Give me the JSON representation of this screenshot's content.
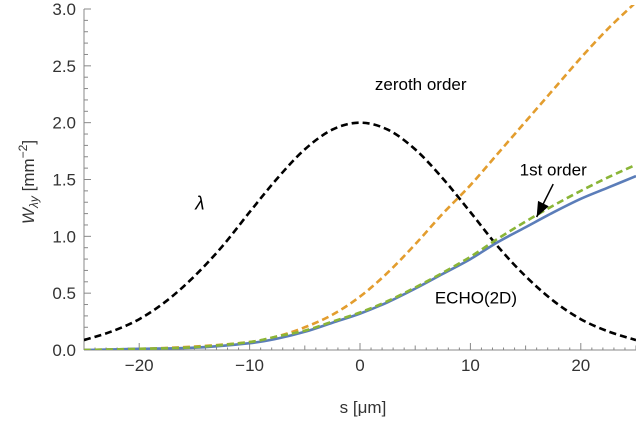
{
  "chart_data": {
    "type": "line",
    "title": "",
    "xlabel": "s [μm]",
    "ylabel": "W",
    "ylabel_sub": "λy",
    "ylabel_unit_pre": " [mm",
    "ylabel_unit_sup": "−2",
    "ylabel_unit_post": "]",
    "xlim": [
      -25,
      25
    ],
    "ylim": [
      0,
      3
    ],
    "x_ticks": [
      -20,
      -10,
      0,
      10,
      20
    ],
    "x_tick_labels": [
      "−20",
      "−10",
      "0",
      "10",
      "20"
    ],
    "y_ticks": [
      0,
      0.5,
      1,
      1.5,
      2,
      2.5,
      3
    ],
    "y_tick_labels": [
      "0.0",
      "0.5",
      "1.0",
      "1.5",
      "2.0",
      "2.5",
      "3.0"
    ],
    "grid": false,
    "series": [
      {
        "id": "lambda",
        "color": "#000000",
        "dash": true,
        "x": [
          -25,
          -22.5,
          -20,
          -17.5,
          -15,
          -12.5,
          -10,
          -7.5,
          -5,
          -2.5,
          0,
          2.5,
          5,
          7.5,
          10,
          12.5,
          15,
          17.5,
          20,
          22.5,
          25
        ],
        "y": [
          0.087,
          0.163,
          0.271,
          0.434,
          0.649,
          0.909,
          1.213,
          1.509,
          1.765,
          1.939,
          2.0,
          1.939,
          1.765,
          1.509,
          1.213,
          0.909,
          0.649,
          0.434,
          0.271,
          0.163,
          0.087
        ]
      },
      {
        "id": "zeroth-order",
        "color": "#E39D2E",
        "dash": true,
        "x": [
          -25,
          -20,
          -15,
          -10,
          -7.5,
          -5,
          -2.5,
          0,
          2.5,
          5,
          7.5,
          10,
          12.5,
          15,
          17.5,
          20,
          22.5,
          25
        ],
        "y": [
          0.0,
          0.01,
          0.03,
          0.07,
          0.12,
          0.2,
          0.31,
          0.47,
          0.68,
          0.93,
          1.2,
          1.45,
          1.73,
          2.01,
          2.29,
          2.57,
          2.83,
          3.06
        ]
      },
      {
        "id": "first-order",
        "color": "#8AB537",
        "dash": true,
        "x": [
          -25,
          -20,
          -15,
          -10,
          -7.5,
          -5,
          -2.5,
          0,
          2.5,
          5,
          7.5,
          10,
          12.5,
          15,
          17.5,
          20,
          22.5,
          25
        ],
        "y": [
          0.0,
          0.01,
          0.025,
          0.07,
          0.12,
          0.17,
          0.25,
          0.33,
          0.43,
          0.55,
          0.68,
          0.82,
          0.98,
          1.13,
          1.27,
          1.4,
          1.52,
          1.63
        ]
      },
      {
        "id": "echo-2d",
        "color": "#5B7DB9",
        "dash": false,
        "x": [
          -25,
          -20,
          -15,
          -10,
          -7.5,
          -5,
          -2.5,
          0,
          2.5,
          5,
          7.5,
          10,
          12.5,
          15,
          17.5,
          20,
          22.5,
          25
        ],
        "y": [
          0.0,
          0.01,
          0.02,
          0.06,
          0.1,
          0.16,
          0.24,
          0.32,
          0.42,
          0.54,
          0.67,
          0.8,
          0.95,
          1.08,
          1.21,
          1.33,
          1.43,
          1.53
        ]
      }
    ],
    "annotations": [
      {
        "id": "lambda",
        "text": "λ",
        "x": -14.5,
        "y": 1.29
      },
      {
        "id": "zeroth-order",
        "text": "zeroth order",
        "x": 5.5,
        "y": 2.34
      },
      {
        "id": "first-order",
        "text": "1st order",
        "x": 17.5,
        "y": 1.59
      },
      {
        "id": "echo-2d",
        "text": "ECHO(2D)",
        "x": 10.5,
        "y": 0.46
      }
    ],
    "arrow": {
      "from": [
        17.5,
        1.46
      ],
      "to": [
        16.0,
        1.17
      ]
    }
  }
}
